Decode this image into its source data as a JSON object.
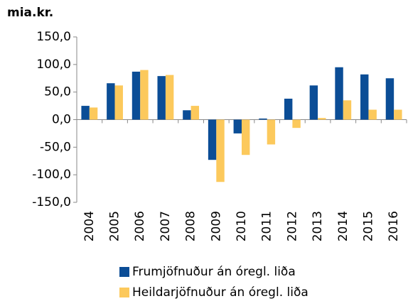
{
  "chart_data": {
    "type": "bar",
    "title": "mia.kr.",
    "categories": [
      "2004",
      "2005",
      "2006",
      "2007",
      "2008",
      "2009",
      "2010",
      "2011",
      "2012",
      "2013",
      "2014",
      "2015",
      "2016"
    ],
    "series": [
      {
        "name": "Frumjöfnuður án óregl. liða",
        "color": "#0b4d96",
        "values": [
          25,
          66,
          87,
          79,
          17,
          -73,
          -25,
          2,
          38,
          62,
          95,
          82,
          75
        ]
      },
      {
        "name": "Heildarjöfnuður án óregl. liða",
        "color": "#fcc95c",
        "values": [
          22,
          62,
          90,
          81,
          25,
          -113,
          -64,
          -45,
          -15,
          3,
          35,
          18,
          18
        ]
      }
    ],
    "ylim": [
      -150,
      150
    ],
    "yticks": [
      {
        "value": -150,
        "label": "-150,0"
      },
      {
        "value": -100,
        "label": "-100,0"
      },
      {
        "value": -50,
        "label": "-50,0"
      },
      {
        "value": 0,
        "label": "0,0"
      },
      {
        "value": 50,
        "label": "50,0"
      },
      {
        "value": 100,
        "label": "100,0"
      },
      {
        "value": 150,
        "label": "150,0"
      }
    ],
    "legend": "bottom",
    "grid": false
  }
}
